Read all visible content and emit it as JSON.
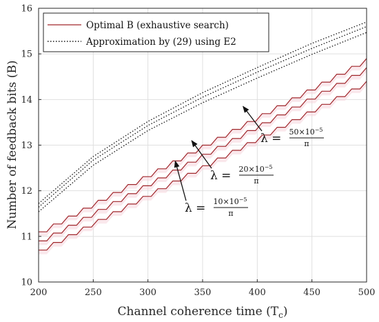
{
  "chart_data": {
    "type": "line",
    "title": "",
    "xlabel": "Channel coherence time (T",
    "xlabel_sub": "c",
    "xlabel_tail": ")",
    "ylabel": "Number of feedback bits (B)",
    "xlim": [
      200,
      500
    ],
    "ylim": [
      10,
      16
    ],
    "xticks": [
      200,
      250,
      300,
      350,
      400,
      450,
      500
    ],
    "yticks": [
      10,
      11,
      12,
      13,
      14,
      15,
      16
    ],
    "grid": true,
    "legend": {
      "position": "top-left",
      "entries": [
        {
          "text": "Optimal B (exhaustive search)",
          "style": "solid",
          "color": "#a0262b"
        },
        {
          "text": "Approximation by (29) using E2",
          "style": "dotted",
          "color": "#111111"
        }
      ]
    },
    "colors": {
      "optimal": "#a0262b",
      "approx": "#111111",
      "band": "#f5d6dc"
    },
    "series": [
      {
        "kind": "optimal",
        "lambda": "50×10^-5/π",
        "x": [
          200,
          500
        ],
        "y": [
          11.1,
          14.9
        ]
      },
      {
        "kind": "optimal",
        "lambda": "20×10^-5/π",
        "x": [
          200,
          500
        ],
        "y": [
          10.9,
          14.7
        ]
      },
      {
        "kind": "optimal",
        "lambda": "10×10^-5/π",
        "x": [
          200,
          500
        ],
        "y": [
          10.7,
          14.4
        ]
      },
      {
        "kind": "approx",
        "lambda": "50×10^-5/π",
        "x": [
          200,
          250,
          300,
          350,
          400,
          450,
          500
        ],
        "y": [
          11.72,
          12.75,
          13.52,
          14.15,
          14.7,
          15.23,
          15.7
        ]
      },
      {
        "kind": "approx",
        "lambda": "20×10^-5/π",
        "x": [
          200,
          250,
          300,
          350,
          400,
          450,
          500
        ],
        "y": [
          11.64,
          12.67,
          13.43,
          14.05,
          14.6,
          15.12,
          15.6
        ]
      },
      {
        "kind": "approx",
        "lambda": "10×10^-5/π",
        "x": [
          200,
          250,
          300,
          350,
          400,
          450,
          500
        ],
        "y": [
          11.54,
          12.56,
          13.32,
          13.93,
          14.47,
          14.99,
          15.47
        ]
      }
    ],
    "annotations": [
      {
        "text": "λ =",
        "num": "50×10",
        "exp": "−5",
        "den": "π",
        "arrow_to": [
          387,
          13.85
        ]
      },
      {
        "text": "λ =",
        "num": "20×10",
        "exp": "−5",
        "den": "π",
        "arrow_to": [
          340,
          13.1
        ]
      },
      {
        "text": "λ =",
        "num": "10×10",
        "exp": "−5",
        "den": "π",
        "arrow_to": [
          325,
          12.65
        ]
      }
    ]
  }
}
